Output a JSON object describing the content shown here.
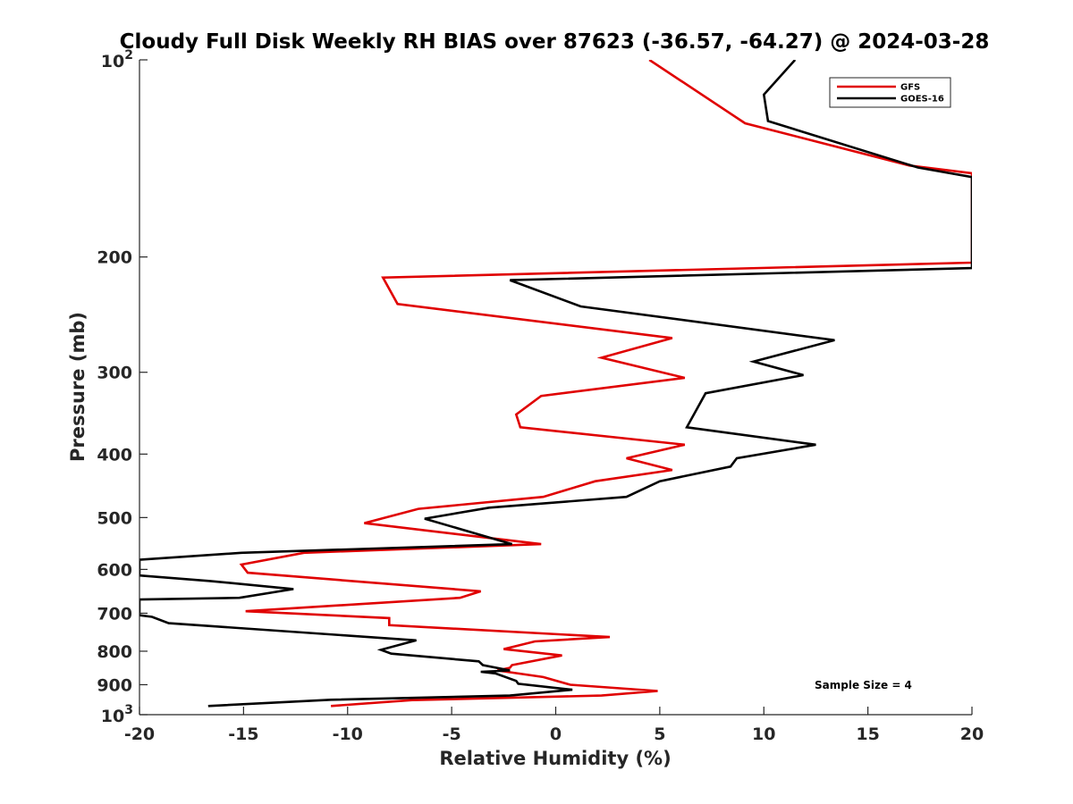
{
  "chart_data": {
    "type": "line",
    "title": "Cloudy Full Disk Weekly RH BIAS over 87623 (-36.57, -64.27) @ 2024-03-28",
    "xlabel": "Relative Humidity (%)",
    "ylabel": "Pressure (mb)",
    "xlim": [
      -20,
      20
    ],
    "ylim": [
      100,
      1000
    ],
    "y_scale": "log",
    "y_reversed": true,
    "x_ticks": [
      -20,
      -15,
      -10,
      -5,
      0,
      5,
      10,
      15,
      20
    ],
    "x_tick_labels": [
      "-20",
      "-15",
      "-10",
      "-5",
      "0",
      "5",
      "10",
      "15",
      "20"
    ],
    "y_ticks": [
      200,
      300,
      400,
      500,
      600,
      700,
      800,
      900
    ],
    "y_tick_labels": [
      "200",
      "300",
      "400",
      "500",
      "600",
      "700",
      "800",
      "900"
    ],
    "y_end_labels": [
      {
        "value": 100,
        "base": "10",
        "exp": "2"
      },
      {
        "value": 1000,
        "base": "10",
        "exp": "3"
      }
    ],
    "grid": false,
    "legend_position": "top-right",
    "annotation": "Sample Size = 4",
    "series": [
      {
        "name": "GFS",
        "color": "#e00000",
        "points": [
          [
            4.5,
            100
          ],
          [
            9.1,
            125
          ],
          [
            17.0,
            145
          ],
          [
            20.0,
            149
          ],
          [
            20.0,
            204
          ],
          [
            -8.3,
            215
          ],
          [
            -7.6,
            236
          ],
          [
            5.6,
            266
          ],
          [
            2.2,
            285
          ],
          [
            6.2,
            306
          ],
          [
            -0.7,
            326
          ],
          [
            -1.9,
            348
          ],
          [
            -1.7,
            364
          ],
          [
            6.2,
            387
          ],
          [
            3.4,
            406
          ],
          [
            5.6,
            423
          ],
          [
            1.9,
            440
          ],
          [
            -0.6,
            465
          ],
          [
            -6.6,
            485
          ],
          [
            -9.2,
            510
          ],
          [
            -0.7,
            549
          ],
          [
            -12.1,
            566
          ],
          [
            -15.1,
            590
          ],
          [
            -14.8,
            607
          ],
          [
            -3.6,
            648
          ],
          [
            -4.6,
            663
          ],
          [
            -14.9,
            695
          ],
          [
            -8.0,
            712
          ],
          [
            -8.0,
            730
          ],
          [
            2.6,
            761
          ],
          [
            -1.0,
            773
          ],
          [
            -2.5,
            794
          ],
          [
            0.3,
            812
          ],
          [
            -2.1,
            840
          ],
          [
            -2.2,
            848
          ],
          [
            -2.8,
            856
          ],
          [
            -0.6,
            876
          ],
          [
            0.7,
            900
          ],
          [
            4.9,
            920
          ],
          [
            2.2,
            935
          ],
          [
            -6.9,
            950
          ],
          [
            -10.8,
            970
          ]
        ]
      },
      {
        "name": "GOES-16",
        "color": "#000000",
        "points": [
          [
            11.5,
            100
          ],
          [
            10.0,
            113
          ],
          [
            10.2,
            124
          ],
          [
            17.4,
            146
          ],
          [
            20.0,
            151
          ],
          [
            20.0,
            208
          ],
          [
            -2.2,
            217
          ],
          [
            1.2,
            238
          ],
          [
            13.4,
            268
          ],
          [
            9.5,
            289
          ],
          [
            11.9,
            303
          ],
          [
            7.2,
            323
          ],
          [
            6.3,
            364
          ],
          [
            12.5,
            387
          ],
          [
            8.7,
            406
          ],
          [
            8.4,
            418
          ],
          [
            5.0,
            440
          ],
          [
            3.4,
            465
          ],
          [
            -3.2,
            483
          ],
          [
            -6.3,
            502
          ],
          [
            -2.1,
            549
          ],
          [
            -15.1,
            566
          ],
          [
            -20.0,
            580
          ],
          [
            -20.0,
            613
          ],
          [
            -16.6,
            625
          ],
          [
            -12.6,
            643
          ],
          [
            -15.2,
            663
          ],
          [
            -20.0,
            667
          ],
          [
            -20.0,
            705
          ],
          [
            -19.4,
            709
          ],
          [
            -18.6,
            725
          ],
          [
            -6.7,
            770
          ],
          [
            -8.4,
            796
          ],
          [
            -7.9,
            807
          ],
          [
            -3.7,
            829
          ],
          [
            -3.5,
            840
          ],
          [
            -2.2,
            856
          ],
          [
            -3.6,
            860
          ],
          [
            -2.9,
            865
          ],
          [
            -1.9,
            888
          ],
          [
            -1.8,
            897
          ],
          [
            0.8,
            916
          ],
          [
            -2.2,
            935
          ],
          [
            -10.8,
            949
          ],
          [
            -16.7,
            970
          ]
        ]
      }
    ]
  }
}
